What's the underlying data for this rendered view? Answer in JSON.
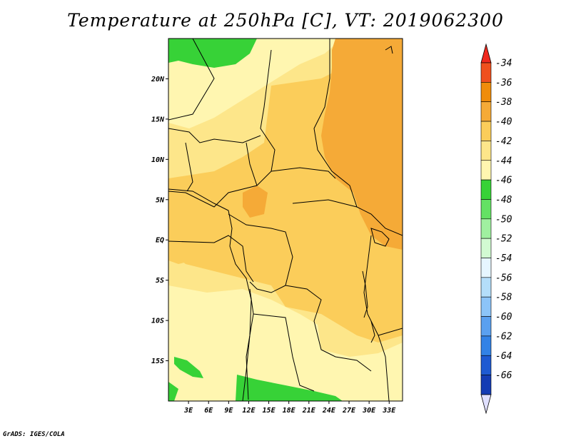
{
  "title": "Temperature at 250hPa [C], VT: 2019062300",
  "credit": "GrADS: IGES/COLA",
  "map": {
    "lon_range": [
      0,
      35
    ],
    "lat_range": [
      -20,
      25
    ],
    "lat_ticks": [
      {
        "value": 20,
        "label": "20N"
      },
      {
        "value": 15,
        "label": "15N"
      },
      {
        "value": 10,
        "label": "10N"
      },
      {
        "value": 5,
        "label": "5N"
      },
      {
        "value": 0,
        "label": "EQ"
      },
      {
        "value": -5,
        "label": "5S"
      },
      {
        "value": -10,
        "label": "10S"
      },
      {
        "value": -15,
        "label": "15S"
      }
    ],
    "lon_ticks": [
      {
        "value": 3,
        "label": "3E"
      },
      {
        "value": 6,
        "label": "6E"
      },
      {
        "value": 9,
        "label": "9E"
      },
      {
        "value": 12,
        "label": "12E"
      },
      {
        "value": 15,
        "label": "15E"
      },
      {
        "value": 18,
        "label": "18E"
      },
      {
        "value": 21,
        "label": "21E"
      },
      {
        "value": 24,
        "label": "24E"
      },
      {
        "value": 27,
        "label": "27E"
      },
      {
        "value": 30,
        "label": "30E"
      },
      {
        "value": 33,
        "label": "33E"
      }
    ]
  },
  "colorbar": {
    "levels": [
      {
        "label": "-34",
        "color": "#f0501e"
      },
      {
        "label": "-36",
        "color": "#f08c0a"
      },
      {
        "label": "-38",
        "color": "#f5aa37"
      },
      {
        "label": "-40",
        "color": "#fbcd5a"
      },
      {
        "label": "-42",
        "color": "#fde68a"
      },
      {
        "label": "-44",
        "color": "#fff6b0"
      },
      {
        "label": "-46",
        "color": "#37d237"
      },
      {
        "label": "-48",
        "color": "#64e164"
      },
      {
        "label": "-50",
        "color": "#a0f0a0"
      },
      {
        "label": "-52",
        "color": "#d2fad2"
      },
      {
        "label": "-54",
        "color": "#e6f6ff"
      },
      {
        "label": "-56",
        "color": "#b4defa"
      },
      {
        "label": "-58",
        "color": "#8cc4f8"
      },
      {
        "label": "-60",
        "color": "#5aa0f0"
      },
      {
        "label": "-62",
        "color": "#3282e6"
      },
      {
        "label": "-64",
        "color": "#1e5ad2"
      },
      {
        "label": "-66",
        "color": "#143cb4"
      }
    ],
    "top_color": "#f0281e",
    "bottom_color": "#0a1478",
    "bottom_triangle_color": "#e0e0ff"
  }
}
